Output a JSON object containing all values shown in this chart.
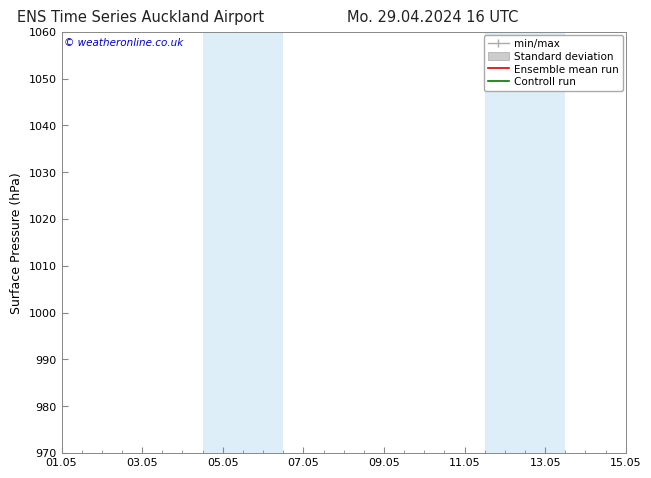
{
  "title_left": "ENS Time Series Auckland Airport",
  "title_right": "Mo. 29.04.2024 16 UTC",
  "ylabel": "Surface Pressure (hPa)",
  "ylim": [
    970,
    1060
  ],
  "yticks": [
    970,
    980,
    990,
    1000,
    1010,
    1020,
    1030,
    1040,
    1050,
    1060
  ],
  "x_start_days": 0,
  "x_end_days": 14,
  "xtick_labels": [
    "01.05",
    "03.05",
    "05.05",
    "07.05",
    "09.05",
    "11.05",
    "13.05",
    "15.05"
  ],
  "xtick_positions": [
    0,
    2,
    4,
    6,
    8,
    10,
    12,
    14
  ],
  "weekend_bands": [
    {
      "start": 3.5,
      "end": 5.5
    },
    {
      "start": 10.5,
      "end": 12.5
    }
  ],
  "weekend_color": "#ddeef8",
  "copyright_text": "© weatheronline.co.uk",
  "copyright_color": "#0000cc",
  "background_color": "#ffffff",
  "spine_color": "#888888",
  "tick_fontsize": 8,
  "ylabel_fontsize": 9,
  "title_fontsize": 10.5,
  "legend_fontsize": 7.5
}
